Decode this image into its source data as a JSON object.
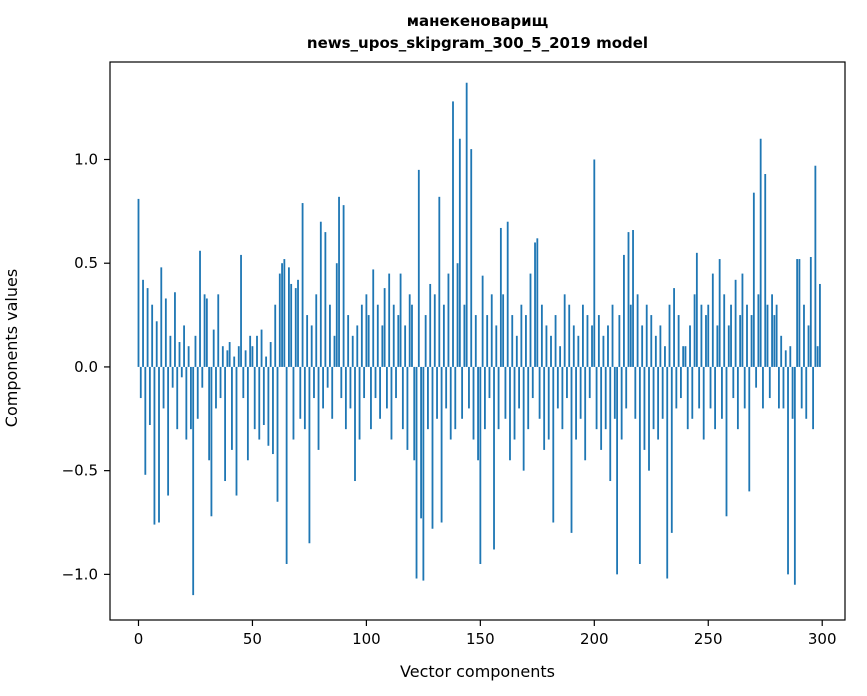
{
  "figure": {
    "title_line1": "манекеноварищ",
    "title_line2": "news_upos_skipgram_300_5_2019 model",
    "xlabel": "Vector components",
    "ylabel": "Components values"
  },
  "chart_data": {
    "type": "bar",
    "title": "манекеноварищ\nnews_upos_skipgram_300_5_2019 model",
    "xlabel": "Vector components",
    "ylabel": "Components values",
    "bar_color": "#1f77b4",
    "axis_color": "#000000",
    "grid": false,
    "legend": null,
    "xlim": [
      -12.5,
      310
    ],
    "ylim": [
      -1.22,
      1.47
    ],
    "x_ticks": [
      0,
      50,
      100,
      150,
      200,
      250,
      300
    ],
    "y_ticks": [
      -1.0,
      -0.5,
      0.0,
      0.5,
      1.0
    ],
    "values": [
      0.81,
      -0.15,
      0.42,
      -0.52,
      0.38,
      -0.28,
      0.3,
      -0.76,
      0.22,
      -0.75,
      0.48,
      -0.2,
      0.33,
      -0.62,
      0.15,
      -0.1,
      0.36,
      -0.3,
      0.12,
      -0.05,
      0.2,
      -0.35,
      0.1,
      -0.3,
      -1.1,
      0.15,
      -0.25,
      0.56,
      -0.1,
      0.35,
      0.33,
      -0.45,
      -0.72,
      0.18,
      -0.2,
      0.35,
      -0.15,
      0.1,
      -0.55,
      0.08,
      0.12,
      -0.4,
      0.05,
      -0.62,
      0.1,
      0.54,
      -0.15,
      0.08,
      -0.45,
      0.15,
      0.1,
      -0.3,
      0.15,
      -0.35,
      0.18,
      -0.28,
      0.05,
      -0.38,
      0.12,
      -0.42,
      0.3,
      -0.65,
      0.45,
      0.5,
      0.52,
      -0.95,
      0.48,
      0.4,
      -0.35,
      0.38,
      0.42,
      -0.25,
      0.79,
      -0.3,
      0.25,
      -0.85,
      0.2,
      -0.15,
      0.35,
      -0.4,
      0.7,
      -0.2,
      0.65,
      -0.1,
      0.3,
      -0.25,
      0.15,
      0.5,
      0.82,
      -0.15,
      0.78,
      -0.3,
      0.25,
      -0.2,
      0.15,
      -0.55,
      0.2,
      -0.35,
      0.3,
      -0.15,
      0.35,
      0.25,
      -0.3,
      0.47,
      -0.15,
      0.3,
      -0.25,
      0.2,
      0.38,
      -0.2,
      0.45,
      -0.35,
      0.3,
      -0.15,
      0.25,
      0.45,
      -0.3,
      0.2,
      -0.4,
      0.35,
      0.3,
      -0.45,
      -1.02,
      0.95,
      -0.73,
      -1.03,
      0.25,
      -0.3,
      0.4,
      -0.78,
      0.35,
      -0.25,
      0.82,
      -0.75,
      0.3,
      -0.2,
      0.45,
      -0.35,
      1.28,
      -0.3,
      0.5,
      1.1,
      -0.25,
      0.3,
      1.37,
      -0.2,
      1.05,
      -0.35,
      0.25,
      -0.45,
      -0.95,
      0.44,
      -0.3,
      0.25,
      -0.15,
      0.35,
      -0.88,
      0.2,
      -0.3,
      0.67,
      0.35,
      -0.25,
      0.7,
      -0.45,
      0.25,
      -0.35,
      0.15,
      -0.2,
      0.3,
      -0.5,
      0.25,
      -0.3,
      0.45,
      -0.15,
      0.6,
      0.62,
      -0.25,
      0.3,
      -0.4,
      0.2,
      -0.35,
      0.15,
      -0.75,
      0.25,
      -0.2,
      0.1,
      -0.3,
      0.35,
      -0.15,
      0.3,
      -0.8,
      0.2,
      -0.35,
      0.15,
      -0.25,
      0.3,
      -0.45,
      0.25,
      -0.15,
      0.2,
      1.0,
      -0.3,
      0.25,
      -0.4,
      0.15,
      -0.3,
      0.2,
      -0.55,
      0.3,
      -0.25,
      -1.0,
      0.25,
      -0.35,
      0.54,
      -0.2,
      0.65,
      0.3,
      0.66,
      -0.25,
      0.35,
      -0.95,
      0.2,
      -0.4,
      0.3,
      -0.5,
      0.25,
      -0.3,
      0.15,
      -0.35,
      0.2,
      -0.25,
      0.1,
      -1.02,
      0.3,
      -0.8,
      0.38,
      -0.2,
      0.25,
      -0.15,
      0.1,
      0.1,
      -0.3,
      0.2,
      -0.25,
      0.35,
      0.55,
      -0.2,
      0.3,
      -0.35,
      0.25,
      0.3,
      -0.2,
      0.45,
      -0.3,
      0.2,
      0.52,
      -0.25,
      0.35,
      -0.72,
      0.2,
      0.3,
      -0.15,
      0.42,
      -0.3,
      0.25,
      0.45,
      -0.2,
      0.3,
      -0.6,
      0.25,
      0.84,
      -0.1,
      0.35,
      1.1,
      -0.2,
      0.93,
      0.3,
      -0.15,
      0.35,
      0.25,
      0.3,
      -0.2,
      0.15,
      -0.2,
      0.08,
      -1.0,
      0.1,
      -0.25,
      -1.05,
      0.52,
      0.52,
      -0.2,
      0.3,
      -0.25,
      0.2,
      0.53,
      -0.3,
      0.97,
      0.1,
      0.4
    ]
  }
}
